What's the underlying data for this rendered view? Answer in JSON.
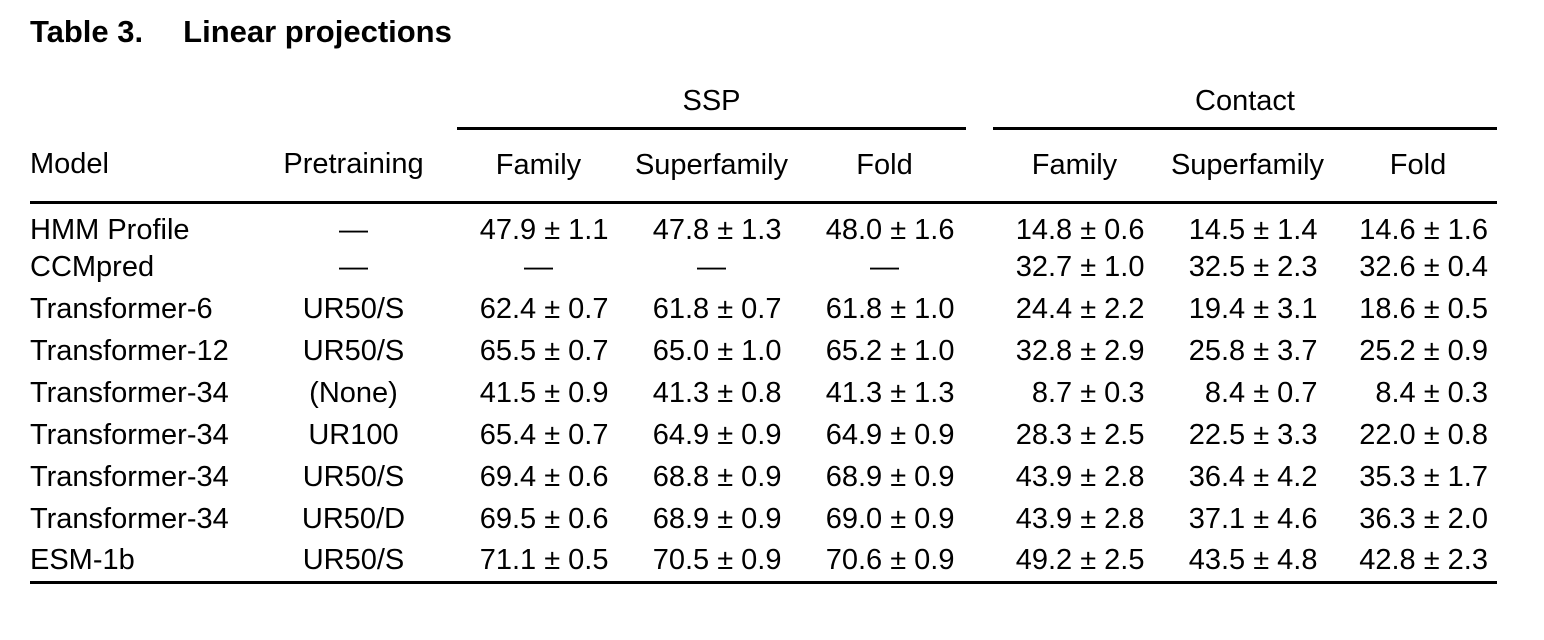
{
  "page": {
    "background_color": "#ffffff",
    "text_color": "#000000",
    "rule_color": "#000000"
  },
  "table": {
    "caption": {
      "label": "Table 3.",
      "title": "Linear projections"
    },
    "groups": [
      {
        "label": "SSP"
      },
      {
        "label": "Contact"
      }
    ],
    "column_headers": {
      "model": "Model",
      "pretraining": "Pretraining",
      "ssp": [
        "Family",
        "Superfamily",
        "Fold"
      ],
      "contact": [
        "Family",
        "Superfamily",
        "Fold"
      ]
    },
    "rows": [
      {
        "model": "HMM Profile",
        "pretraining": "—",
        "ssp": [
          "47.9 ± 1.1",
          "47.8 ± 1.3",
          "48.0 ± 1.6"
        ],
        "contact": [
          "14.8 ± 0.6",
          "14.5 ± 1.4",
          "14.6 ± 1.6"
        ]
      },
      {
        "model": "CCMpred",
        "pretraining": "—",
        "ssp": [
          "—",
          "—",
          "—"
        ],
        "contact": [
          "32.7 ± 1.0",
          "32.5 ± 2.3",
          "32.6 ± 0.4"
        ]
      },
      {
        "model": "Transformer-6",
        "pretraining": "UR50/S",
        "ssp": [
          "62.4 ± 0.7",
          "61.8 ± 0.7",
          "61.8 ± 1.0"
        ],
        "contact": [
          "24.4 ± 2.2",
          "19.4 ± 3.1",
          "18.6 ± 0.5"
        ]
      },
      {
        "model": "Transformer-12",
        "pretraining": "UR50/S",
        "ssp": [
          "65.5 ± 0.7",
          "65.0 ± 1.0",
          "65.2 ± 1.0"
        ],
        "contact": [
          "32.8 ± 2.9",
          "25.8 ± 3.7",
          "25.2 ± 0.9"
        ]
      },
      {
        "model": "Transformer-34",
        "pretraining": "(None)",
        "ssp": [
          "41.5 ± 0.9",
          "41.3 ± 0.8",
          "41.3 ± 1.3"
        ],
        "contact": [
          "8.7 ± 0.3",
          "8.4 ± 0.7",
          "8.4 ± 0.3"
        ]
      },
      {
        "model": "Transformer-34",
        "pretraining": "UR100",
        "ssp": [
          "65.4 ± 0.7",
          "64.9 ± 0.9",
          "64.9 ± 0.9"
        ],
        "contact": [
          "28.3 ± 2.5",
          "22.5 ± 3.3",
          "22.0 ± 0.8"
        ]
      },
      {
        "model": "Transformer-34",
        "pretraining": "UR50/S",
        "ssp": [
          "69.4 ± 0.6",
          "68.8 ± 0.9",
          "68.9 ± 0.9"
        ],
        "contact": [
          "43.9 ± 2.8",
          "36.4 ± 4.2",
          "35.3 ± 1.7"
        ]
      },
      {
        "model": "Transformer-34",
        "pretraining": "UR50/D",
        "ssp": [
          "69.5 ± 0.6",
          "68.9 ± 0.9",
          "69.0 ± 0.9"
        ],
        "contact": [
          "43.9 ± 2.8",
          "37.1 ± 4.6",
          "36.3 ± 2.0"
        ]
      },
      {
        "model": "ESM-1b",
        "pretraining": "UR50/S",
        "ssp": [
          "71.1 ± 0.5",
          "70.5 ± 0.9",
          "70.6 ± 0.9"
        ],
        "contact": [
          "49.2 ± 2.5",
          "43.5 ± 4.8",
          "42.8 ± 2.3"
        ]
      }
    ],
    "dash_glyph": "—"
  }
}
